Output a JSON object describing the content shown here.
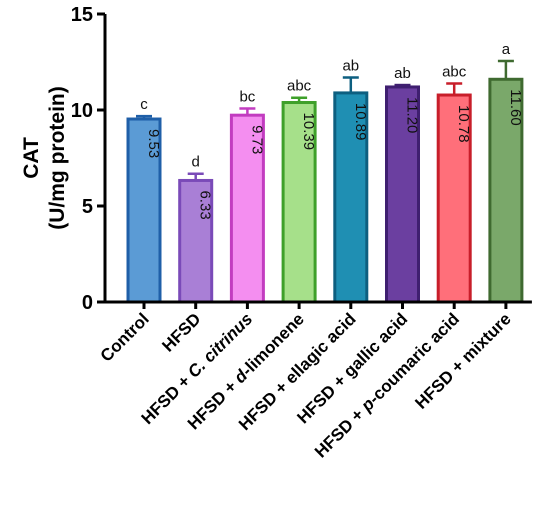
{
  "chart_data": {
    "type": "bar",
    "title": "",
    "ylabel_line1": "CAT",
    "ylabel_line2": "(U/mg protein)",
    "xlabel": "",
    "ylim": [
      0,
      15
    ],
    "yticks": [
      0,
      5,
      10,
      15
    ],
    "grid": false,
    "categories": [
      {
        "parts": [
          {
            "t": "Control",
            "i": false
          }
        ]
      },
      {
        "parts": [
          {
            "t": "HFSD",
            "i": false
          }
        ]
      },
      {
        "parts": [
          {
            "t": "HFSD + ",
            "i": false
          },
          {
            "t": "C. citrinus",
            "i": true
          }
        ]
      },
      {
        "parts": [
          {
            "t": "HFSD + ",
            "i": false
          },
          {
            "t": "d",
            "i": true
          },
          {
            "t": "-limonene",
            "i": false
          }
        ]
      },
      {
        "parts": [
          {
            "t": "HFSD + ellagic acid",
            "i": false
          }
        ]
      },
      {
        "parts": [
          {
            "t": "HFSD + gallic acid",
            "i": false
          }
        ]
      },
      {
        "parts": [
          {
            "t": "HFSD + ",
            "i": false
          },
          {
            "t": "p",
            "i": true
          },
          {
            "t": "-coumaric acid",
            "i": false
          }
        ]
      },
      {
        "parts": [
          {
            "t": "HFSD + mixture",
            "i": false
          }
        ]
      }
    ],
    "values": [
      9.53,
      6.33,
      9.73,
      10.39,
      10.89,
      11.2,
      10.78,
      11.6
    ],
    "value_labels": [
      "9.53",
      "6.33",
      "9.73",
      "10.39",
      "10.89",
      "11.20",
      "10.78",
      "11.60"
    ],
    "errors": [
      0.15,
      0.35,
      0.35,
      0.25,
      0.8,
      0.1,
      0.6,
      0.95
    ],
    "significance": [
      "c",
      "d",
      "bc",
      "abc",
      "ab",
      "ab",
      "abc",
      "a"
    ],
    "fill_colors": [
      "#5b9bd5",
      "#a97fd6",
      "#f48ef0",
      "#a6e08a",
      "#1f8fb3",
      "#6b3fa0",
      "#ff6f7a",
      "#7aa86a"
    ],
    "edge_colors": [
      "#1f5fa8",
      "#7a4ab8",
      "#c23cc0",
      "#3ea02a",
      "#0d5f80",
      "#3f1f70",
      "#c81e2a",
      "#3f6a30"
    ]
  }
}
